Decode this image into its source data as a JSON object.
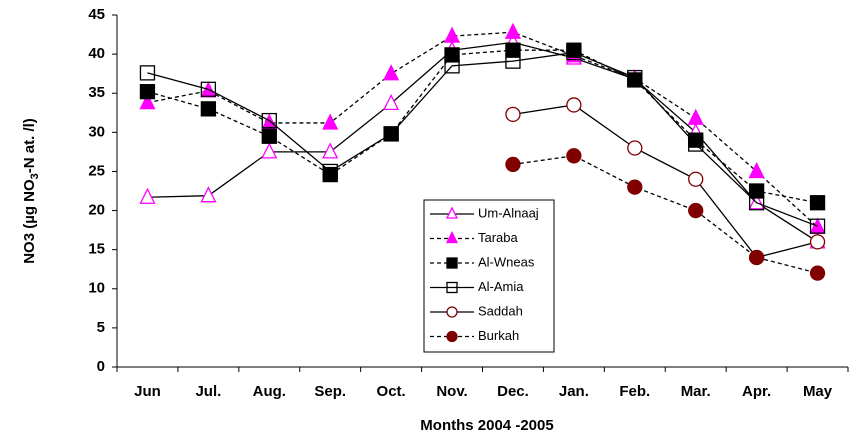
{
  "chart_data": {
    "type": "line",
    "x_label": "Months   2004   -2005",
    "y_label": [
      "NO3  (µg NO",
      "3",
      "-N at. /l)"
    ],
    "categories": [
      "Jun",
      "Jul.",
      "Aug.",
      "Sep.",
      "Oct.",
      "Nov.",
      "Dec.",
      "Jan.",
      "Feb.",
      "Mar.",
      "Apr.",
      "May"
    ],
    "ylim": [
      0,
      45
    ],
    "yticks": [
      0,
      5,
      10,
      15,
      20,
      25,
      30,
      35,
      40,
      45
    ],
    "legend": "lower-right",
    "series": [
      {
        "name": "Um-Alnaaj",
        "color": "#ff00ff",
        "marker": "triangle",
        "filled": false,
        "dashed": false,
        "values": [
          21.7,
          21.9,
          27.5,
          27.5,
          33.7,
          40.5,
          41.5,
          39.5,
          36.8,
          30,
          21,
          16
        ]
      },
      {
        "name": "Taraba",
        "color": "#ff00ff",
        "marker": "triangle",
        "filled": true,
        "dashed": true,
        "values": [
          33.8,
          35.3,
          31.2,
          31.2,
          37.5,
          42.3,
          42.8,
          39.8,
          36.9,
          31.8,
          25,
          17.9
        ]
      },
      {
        "name": "Al-Wneas",
        "color": "#000000",
        "marker": "square",
        "filled": true,
        "dashed": true,
        "values": [
          35.2,
          33,
          29.5,
          24.6,
          29.8,
          39.9,
          40.5,
          40.5,
          36.7,
          29,
          22.5,
          21
        ]
      },
      {
        "name": "Al-Amia",
        "color": "#000000",
        "marker": "square",
        "filled": false,
        "dashed": false,
        "values": [
          37.6,
          35.5,
          31.5,
          25,
          29.8,
          38.5,
          39.1,
          40.2,
          37,
          28.5,
          21,
          18
        ]
      },
      {
        "name": "Saddah",
        "color": "#800000",
        "marker": "circle",
        "filled": false,
        "dashed": false,
        "values": [
          null,
          null,
          null,
          null,
          null,
          null,
          32.3,
          33.5,
          28,
          24,
          14,
          16
        ]
      },
      {
        "name": "Burkah",
        "color": "#800000",
        "marker": "circle",
        "filled": true,
        "dashed": true,
        "values": [
          null,
          null,
          null,
          null,
          null,
          null,
          25.9,
          27,
          23,
          20,
          14,
          12
        ]
      }
    ]
  }
}
